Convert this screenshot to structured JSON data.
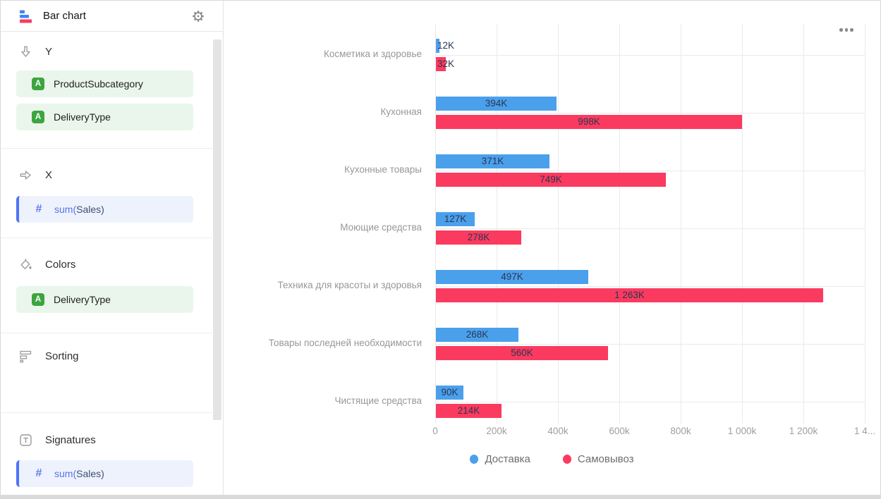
{
  "sidebar": {
    "header": {
      "title": "Bar chart",
      "chart_type_icon": "bar-chart-icon",
      "settings_icon": "gear-icon"
    },
    "sections": [
      {
        "label": "Y",
        "icon": "arrow-down-icon",
        "fields": [
          {
            "kind": "dimension",
            "badge": "A",
            "label": "ProductSubcategory"
          },
          {
            "kind": "dimension",
            "badge": "A",
            "label": "DeliveryType"
          }
        ]
      },
      {
        "label": "X",
        "icon": "arrow-right-icon",
        "fields": [
          {
            "kind": "measure",
            "badge": "#",
            "label": "sum(Sales)",
            "label_fn": "sum(",
            "label_rest": "Sales)"
          }
        ]
      },
      {
        "label": "Colors",
        "icon": "paint-bucket-icon",
        "fields": [
          {
            "kind": "dimension",
            "badge": "A",
            "label": "DeliveryType"
          }
        ]
      },
      {
        "label": "Sorting",
        "icon": "sort-bars-icon",
        "fields": []
      },
      {
        "label": "Signatures",
        "icon": "text-label-icon",
        "fields": [
          {
            "kind": "measure",
            "badge": "#",
            "label": "sum(Sales)",
            "label_fn": "sum(",
            "label_rest": "Sales)"
          }
        ]
      }
    ]
  },
  "chart": {
    "more_menu_icon": "ellipsis-icon"
  },
  "chart_data": {
    "type": "bar",
    "orientation": "horizontal",
    "grid": true,
    "legend_position": "bottom",
    "categories": [
      "Косметика и здоровье",
      "Кухонная",
      "Кухонные товары",
      "Моющие средства",
      "Техника для красоты и здоровья",
      "Товары последней необходимости",
      "Чистящие средства"
    ],
    "series": [
      {
        "name": "Доставка",
        "color": "#4BA0EC",
        "values": [
          12,
          394,
          371,
          127,
          497,
          268,
          90
        ],
        "labels": [
          "12K",
          "394K",
          "371K",
          "127K",
          "497K",
          "268K",
          "90K"
        ]
      },
      {
        "name": "Самовывоз",
        "color": "#FB3A60",
        "values": [
          32,
          998,
          749,
          278,
          1263,
          560,
          214
        ],
        "labels": [
          "32K",
          "998K",
          "749K",
          "278K",
          "1 263K",
          "560K",
          "214K"
        ]
      }
    ],
    "value_unit": "K",
    "x_axis": {
      "max": 1400,
      "tick_values": [
        0,
        200,
        400,
        600,
        800,
        1000,
        1200,
        1400
      ],
      "tick_labels": [
        "0",
        "200k",
        "400k",
        "600k",
        "800k",
        "1 000k",
        "1 200k",
        "1 4..."
      ]
    }
  },
  "colors": {
    "dimension_green": "#3CA53E",
    "dimension_pill_bg": "#EAF6EB",
    "measure_blue": "#4D74F5",
    "measure_pill_bg": "#EEF2FD",
    "series_blue": "#4BA0EC",
    "series_red": "#FB3A60"
  }
}
